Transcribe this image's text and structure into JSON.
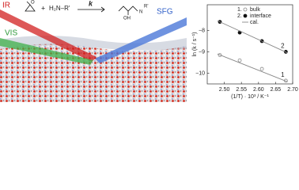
{
  "illustration": {
    "beams": [
      "IR",
      "VIS",
      "SFG"
    ],
    "scheme": {
      "rate": "k",
      "plus": "+",
      "amine": "H₂N–R'",
      "hydroxyl": "OH",
      "product_amine": "N",
      "product_r": "R'"
    }
  },
  "chart_data": {
    "type": "scatter",
    "x_label": "(1/T) · 10³ / K⁻¹",
    "y_label": "ln (k / s⁻¹)",
    "xlim": [
      2.45,
      2.7
    ],
    "xticks": [
      {
        "value": 2.5,
        "label": "2.50"
      },
      {
        "value": 2.55,
        "label": "2.55"
      },
      {
        "value": 2.6,
        "label": "2.60"
      },
      {
        "value": 2.65,
        "label": "2.65"
      },
      {
        "value": 2.7,
        "label": "2.70"
      }
    ],
    "ylim": [
      -10.5,
      -6.8
    ],
    "yticks": [
      {
        "value": -8,
        "label": "−8"
      },
      {
        "value": -9,
        "label": "−9"
      },
      {
        "value": -10,
        "label": "−10"
      }
    ],
    "series": [
      {
        "name": "bulk",
        "number": "1.",
        "line_label": "1",
        "marker": "open",
        "color": "#888888",
        "x": [
          2.487,
          2.545,
          2.61,
          2.68
        ],
        "values": [
          -9.15,
          -9.4,
          -9.8,
          -10.35
        ]
      },
      {
        "name": "interface",
        "number": "2.",
        "line_label": "2",
        "marker": "filled",
        "color": "#111111",
        "x": [
          2.487,
          2.545,
          2.61,
          2.68
        ],
        "values": [
          -7.6,
          -8.1,
          -8.5,
          -9.0
        ]
      },
      {
        "name": "cal.",
        "marker": "line",
        "color": "#888888",
        "x": [
          2.48,
          2.685,
          null,
          2.48,
          2.685
        ],
        "values": [
          -9.1,
          -10.4,
          null,
          -7.55,
          -9.05
        ]
      }
    ]
  }
}
